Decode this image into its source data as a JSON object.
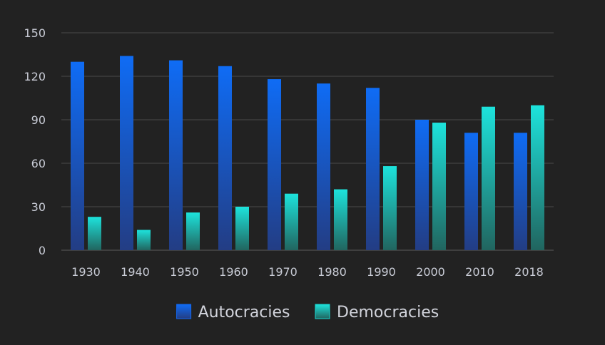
{
  "chart_data": {
    "type": "bar",
    "title": "",
    "xlabel": "",
    "ylabel": "",
    "categories": [
      "1930",
      "1940",
      "1950",
      "1960",
      "1970",
      "1980",
      "1990",
      "2000",
      "2010",
      "2018"
    ],
    "series": [
      {
        "name": "Autocracies",
        "values": [
          130,
          134,
          131,
          127,
          118,
          115,
          112,
          90,
          81,
          81
        ],
        "color": "#1468f0"
      },
      {
        "name": "Democracies",
        "values": [
          23,
          14,
          26,
          30,
          39,
          42,
          58,
          88,
          99,
          100
        ],
        "color": "#1ad6d0"
      }
    ],
    "ylim": [
      0,
      150
    ],
    "yticks": [
      0,
      30,
      60,
      90,
      120,
      150
    ],
    "grid": true,
    "legend_position": "bottom",
    "colors": {
      "background": "#222222",
      "grid": "#4a4a4a",
      "text": "#c9ccd6"
    }
  }
}
